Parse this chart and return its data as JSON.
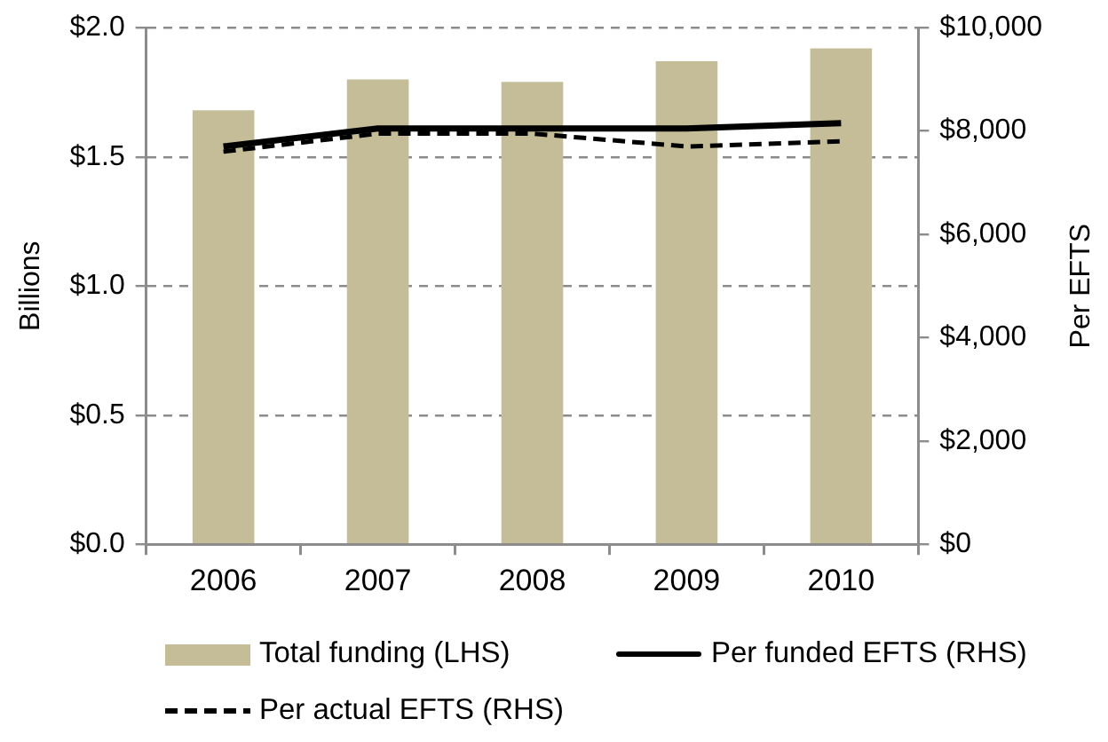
{
  "chart_data": {
    "type": "bar",
    "categories": [
      "2006",
      "2007",
      "2008",
      "2009",
      "2010"
    ],
    "ylabel": "Billions",
    "y2label": "Per EFTS",
    "series": [
      {
        "name": "Total funding (LHS)",
        "color": "#c4bd97",
        "values": [
          1.68,
          1.8,
          1.79,
          1.87,
          1.92
        ]
      },
      {
        "name": "Per funded EFTS (RHS)",
        "type": "line",
        "axis": "y2",
        "color": "#000000",
        "line_style": "solid",
        "values": [
          7700,
          8050,
          8050,
          8050,
          8150
        ]
      },
      {
        "name": "Per actual EFTS (RHS)",
        "type": "line",
        "axis": "y2",
        "color": "#000000",
        "line_style": "dashed",
        "values": [
          7600,
          7950,
          7950,
          7700,
          7800
        ]
      }
    ],
    "ylim": [
      0,
      2
    ],
    "yticks": [
      {
        "value": 0,
        "label": "$0.0"
      },
      {
        "value": 0.5,
        "label": "$0.5"
      },
      {
        "value": 1,
        "label": "$1.0"
      },
      {
        "value": 1.5,
        "label": "$1.5"
      },
      {
        "value": 2,
        "label": "$2.0"
      }
    ],
    "y2lim": [
      0,
      10000
    ],
    "y2ticks": [
      {
        "value": 0,
        "label": "$0"
      },
      {
        "value": 2000,
        "label": "$2,000"
      },
      {
        "value": 4000,
        "label": "$4,000"
      },
      {
        "value": 6000,
        "label": "$6,000"
      },
      {
        "value": 8000,
        "label": "$8,000"
      },
      {
        "value": 10000,
        "label": "$10,000"
      }
    ],
    "grid": "y",
    "legend": "bottom",
    "marker": "none"
  }
}
